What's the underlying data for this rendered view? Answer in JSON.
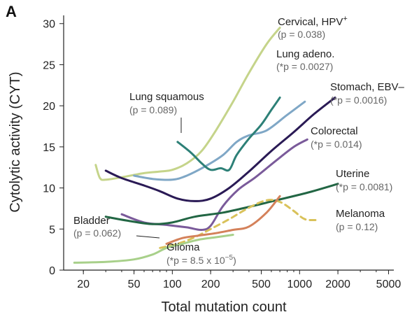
{
  "panel_label": "A",
  "chart_data": {
    "type": "line",
    "title": "",
    "xlabel": "Total mutation count",
    "ylabel": "Cytolytic activity (CYT)",
    "xscale": "log",
    "xlim": [
      14,
      5500
    ],
    "ylim": [
      0,
      31
    ],
    "xticks": [
      20,
      50,
      100,
      200,
      500,
      1000,
      2000,
      5000
    ],
    "xtick_labels": [
      "20",
      "50",
      "100",
      "200",
      "500",
      "1000",
      "2000",
      "5000"
    ],
    "yticks": [
      0,
      5,
      10,
      15,
      20,
      25,
      30
    ],
    "ytick_labels": [
      "0",
      "5",
      "10",
      "15",
      "20",
      "25",
      "30"
    ],
    "grid": false,
    "legend": "inline labels",
    "series": [
      {
        "key": "cervical",
        "name": "Cervical, HPV",
        "name_sup": "+",
        "p_label": "(p = 0.038)",
        "color": "#c5d48a",
        "dashed": false,
        "x": [
          25,
          27,
          30,
          40,
          60,
          80,
          100,
          130,
          170,
          220,
          300,
          400,
          550,
          700
        ],
        "y": [
          12.8,
          11.2,
          11,
          11.3,
          11.8,
          12,
          12.2,
          13,
          14.5,
          17,
          20.5,
          24,
          27.5,
          29.5
        ]
      },
      {
        "key": "lung_adeno",
        "name": "Lung adeno.",
        "p_label": "(*p = 0.0027)",
        "color": "#7fa7c6",
        "dashed": false,
        "x": [
          50,
          70,
          100,
          130,
          180,
          250,
          320,
          400,
          550,
          800,
          1100
        ],
        "y": [
          11.5,
          11.1,
          11,
          11.5,
          12.6,
          14,
          15.6,
          16.4,
          17,
          18.9,
          20.5
        ]
      },
      {
        "key": "lung_squamous",
        "name": "Lung squamous",
        "p_label": "(p = 0.089)",
        "color": "#2d8077",
        "dashed": false,
        "x": [
          110,
          140,
          170,
          200,
          240,
          280,
          320,
          400,
          500,
          600,
          700
        ],
        "y": [
          15.6,
          14.3,
          13,
          12.2,
          12.4,
          12.2,
          14,
          16,
          17.7,
          19.5,
          21
        ]
      },
      {
        "key": "stomach",
        "name": "Stomach, EBV–",
        "p_label": "(*p = 0.0016)",
        "color": "#2a1a55",
        "dashed": false,
        "x": [
          30,
          40,
          60,
          80,
          110,
          150,
          200,
          280,
          400,
          600,
          900,
          1300,
          1900
        ],
        "y": [
          12.1,
          11.2,
          10.3,
          9.6,
          8.7,
          8.4,
          8.7,
          10,
          12,
          14.5,
          16.8,
          19,
          21
        ]
      },
      {
        "key": "colorectal",
        "name": "Colorectal",
        "p_label": "(*p = 0.014)",
        "color": "#7a5a9a",
        "dashed": false,
        "x": [
          40,
          60,
          90,
          130,
          170,
          200,
          250,
          330,
          450,
          650,
          900,
          1150
        ],
        "y": [
          6.8,
          5.8,
          5.5,
          5.2,
          4.9,
          5.4,
          7.8,
          9.8,
          11.3,
          13.3,
          15,
          15.9
        ]
      },
      {
        "key": "uterine",
        "name": "Uterine",
        "p_label": "(*p = 0.0081)",
        "color": "#226644",
        "dashed": false,
        "x": [
          30,
          45,
          70,
          100,
          150,
          250,
          400,
          700,
          1200,
          2000
        ],
        "y": [
          6.5,
          6,
          5.6,
          5.8,
          6.5,
          7,
          7.7,
          8.6,
          9.5,
          10.5
        ]
      },
      {
        "key": "melanoma",
        "name": "Melanoma",
        "p_label": "(p = 0.12)",
        "color": "#d9c25a",
        "dashed": true,
        "x": [
          80,
          110,
          150,
          200,
          280,
          400,
          550,
          700,
          900,
          1100,
          1400
        ],
        "y": [
          2.7,
          3.2,
          4,
          5,
          6.2,
          7.6,
          8.5,
          8.3,
          7.2,
          6.2,
          6.1
        ]
      },
      {
        "key": "bladder",
        "name": "Bladder",
        "p_label": "(p = 0.062)",
        "color": "#d4815a",
        "dashed": false,
        "x": [
          90,
          120,
          160,
          220,
          300,
          400,
          550,
          700
        ],
        "y": [
          3.2,
          3.9,
          4.2,
          4.5,
          4.9,
          5.3,
          7,
          9
        ]
      },
      {
        "key": "glioma",
        "name": "Glioma",
        "p_label": "(*p = 8.5 x 10",
        "p_sup": "−5",
        "p_tail": ")",
        "color": "#a8d08a",
        "dashed": false,
        "x": [
          17,
          30,
          50,
          70,
          90,
          120,
          160,
          220,
          300
        ],
        "y": [
          0.9,
          1,
          1.3,
          1.9,
          2.7,
          3.2,
          3.7,
          4,
          4.3
        ]
      }
    ]
  }
}
